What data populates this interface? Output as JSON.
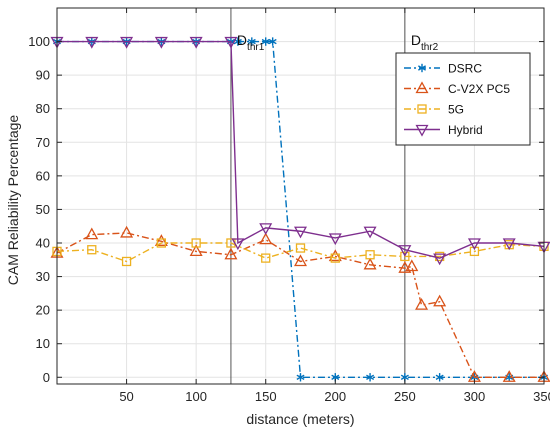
{
  "chart_data": {
    "type": "line",
    "xlabel": "distance (meters)",
    "ylabel": "CAM Reliability Percentage",
    "xlim": [
      0,
      350
    ],
    "ylim": [
      -2,
      110
    ],
    "xticks": [
      50,
      100,
      150,
      200,
      250,
      300,
      350
    ],
    "yticks": [
      0,
      10,
      20,
      30,
      40,
      50,
      60,
      70,
      80,
      90,
      100
    ],
    "grid": true,
    "legend_position": "top-right",
    "vlines": [
      {
        "x": 125,
        "label_main": "D",
        "label_sub": "thr1"
      },
      {
        "x": 250,
        "label_main": "D",
        "label_sub": "thr2"
      }
    ],
    "series": [
      {
        "name": "DSRC",
        "color": "#0072BD",
        "marker": "asterisk",
        "line": "dashdot",
        "x": [
          0,
          25,
          50,
          75,
          100,
          125,
          130,
          140,
          150,
          155,
          175,
          200,
          225,
          250,
          275,
          300,
          325,
          350
        ],
        "y": [
          100,
          100,
          100,
          100,
          100,
          100,
          100,
          100,
          100,
          100,
          0,
          0,
          0,
          0,
          0,
          0,
          0,
          0
        ]
      },
      {
        "name": "C-V2X PC5",
        "color": "#D95319",
        "marker": "triangle-up",
        "line": "dashdot",
        "x": [
          0,
          25,
          50,
          75,
          100,
          125,
          150,
          175,
          200,
          225,
          250,
          255,
          262,
          275,
          300,
          325,
          350
        ],
        "y": [
          37,
          42.5,
          43,
          40.5,
          37.5,
          36.5,
          41,
          34.5,
          36,
          33.5,
          32.5,
          33,
          21.5,
          22.5,
          0,
          0,
          0
        ]
      },
      {
        "name": "5G",
        "color": "#EDB120",
        "marker": "square",
        "line": "dashdot",
        "x": [
          0,
          25,
          50,
          75,
          100,
          125,
          150,
          175,
          200,
          225,
          250,
          275,
          300,
          325,
          350
        ],
        "y": [
          37.5,
          38,
          34.5,
          40,
          40,
          40,
          35.5,
          38.5,
          35.5,
          36.5,
          36,
          36,
          37.5,
          39.5,
          39
        ]
      },
      {
        "name": "Hybrid",
        "color": "#7E2F8E",
        "marker": "triangle-down",
        "line": "solid",
        "x": [
          0,
          25,
          50,
          75,
          100,
          125,
          130,
          150,
          175,
          200,
          225,
          250,
          275,
          300,
          325,
          350
        ],
        "y": [
          100,
          100,
          100,
          100,
          100,
          100,
          40,
          44.5,
          43.5,
          41.5,
          43.5,
          38,
          35.5,
          40,
          40,
          39
        ]
      }
    ]
  }
}
